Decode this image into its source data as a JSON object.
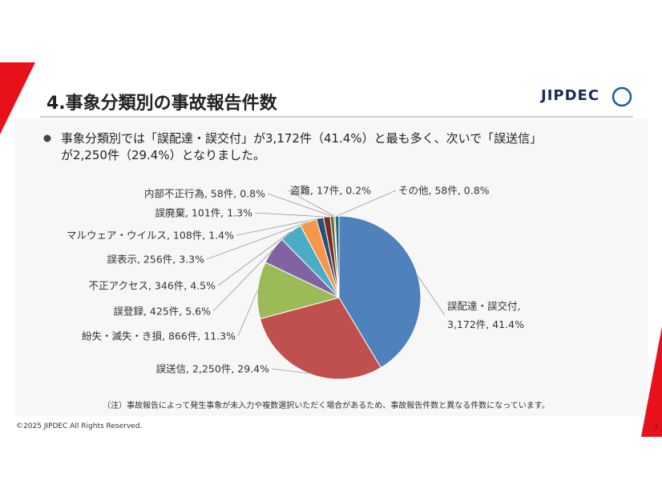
{
  "header": {
    "title": "4.事象分類別の事故報告件数",
    "logo": "JIPDEC"
  },
  "bullet": [
    "事象分類別では「誤配達・誤交付」が3,172件（41.4%）と最も多く、次いで「誤送信」",
    "が2,250件（29.4%）となりました。"
  ],
  "chart_data": {
    "type": "pie",
    "values": [
      3172,
      2250,
      866,
      425,
      346,
      256,
      108,
      101,
      58,
      17,
      58
    ],
    "value_labels": [
      "誤配達・誤交付, 3,172件, 41.4%",
      "誤送信, 2,250件, 29.4%",
      "紛失・滅失・き損, 866件, 11.3%",
      "誤登録, 425件, 5.6%",
      "不正アクセス, 346件, 4.5%",
      "誤表示, 256件, 3.3%",
      "マルウェア・ウイルス, 108件, 1.4%",
      "誤廃棄, 101件, 1.3%",
      "内部不正行為, 58件, 0.8%",
      "盗難, 17件, 0.2%",
      "その他, 58件, 0.8%"
    ],
    "colors": [
      "#4f81bd",
      "#c0504d",
      "#9bbb59",
      "#8064a2",
      "#4bacc6",
      "#f79646",
      "#2c4d75",
      "#772c2a",
      "#5f7530",
      "#4d3b62",
      "#276a7c"
    ]
  },
  "note": "（注）事故報告によって発生事象が未入力や複数選択いただく場合があるため、事故報告件数と異なる件数になっています。",
  "footer": {
    "copyright": "©2025 JIPDEC All Rights Reserved.",
    "page": 7
  }
}
